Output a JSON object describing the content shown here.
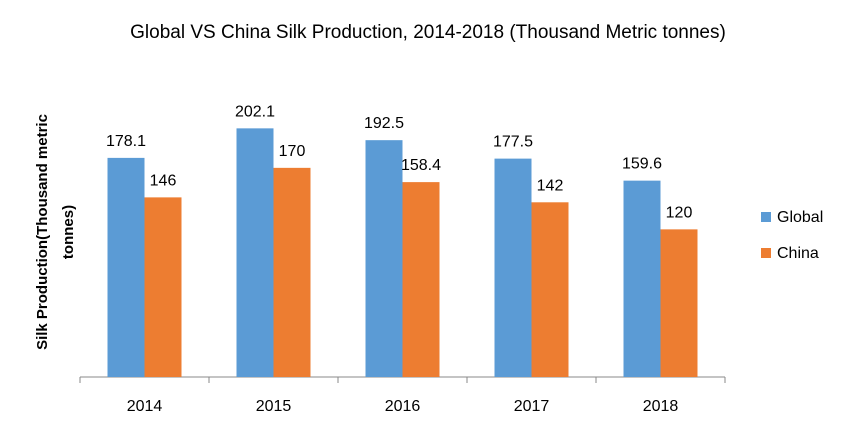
{
  "chart_data": {
    "type": "bar",
    "title": "Global VS China Silk Production, 2014-2018 (Thousand Metric tonnes)",
    "xlabel": "",
    "ylabel_lines": [
      "Silk Production(Thousand  metric",
      "tonnes)"
    ],
    "categories": [
      "2014",
      "2015",
      "2016",
      "2017",
      "2018"
    ],
    "series": [
      {
        "name": "Global",
        "color": "#5B9BD5",
        "values": [
          178.1,
          202.1,
          192.5,
          177.5,
          159.6
        ],
        "labels": [
          "178.1",
          "202.1",
          "192.5",
          "177.5",
          "159.6"
        ]
      },
      {
        "name": "China",
        "color": "#ED7D31",
        "values": [
          146,
          170,
          158.4,
          142,
          120
        ],
        "labels": [
          "146",
          "170",
          "158.4",
          "142",
          "120"
        ]
      }
    ],
    "ylim": [
      0,
      200
    ],
    "grid": false,
    "legend_position": "right",
    "data_labels": true
  }
}
